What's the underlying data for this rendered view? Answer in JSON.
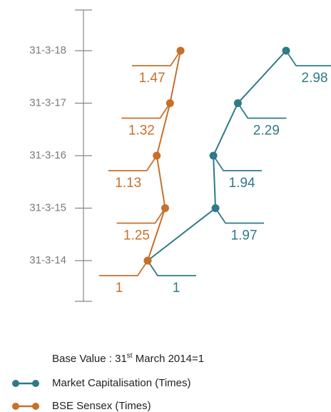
{
  "chart_data": {
    "type": "line",
    "categories": [
      "31-3-14",
      "31-3-15",
      "31-3-16",
      "31-3-17",
      "31-3-18"
    ],
    "series": [
      {
        "name": "Market Capitalisation (Times)",
        "color": "#2e7a87",
        "values": [
          1,
          1.97,
          1.94,
          2.29,
          2.98
        ]
      },
      {
        "name": "BSE Sensex (Times)",
        "color": "#c8702a",
        "values": [
          1,
          1.25,
          1.13,
          1.32,
          1.47
        ]
      }
    ],
    "note": {
      "prefix": "Base Value : 31",
      "sup": "st",
      "suffix": " March 2014=1"
    }
  }
}
